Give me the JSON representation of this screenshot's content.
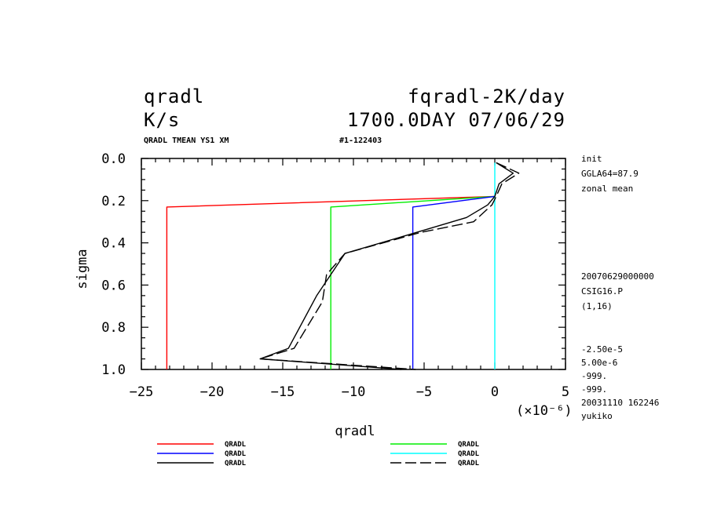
{
  "header": {
    "var_name": "qradl",
    "units": "K/s",
    "right_title": "fqradl-2K/day",
    "right_subtitle": "1700.0DAY 07/06/29",
    "info_left": "QRADL TMEAN YS1 XM",
    "info_right": "#1-122403"
  },
  "side_labels": {
    "top": [
      "init",
      "GGLA64=87.9",
      "zonal mean"
    ],
    "middle": [
      "20070629000000",
      "CSIG16.P",
      "(1,16)"
    ],
    "bottom": [
      "-2.50e-5",
      "5.00e-6",
      "-999.",
      "-999.",
      "20031110 162246",
      "yukiko"
    ]
  },
  "chart_data": {
    "type": "line",
    "xlabel": "qradl",
    "ylabel": "sigma",
    "x_scale_label": "(×10⁻⁶)",
    "xlim": [
      -25,
      5
    ],
    "ylim": [
      0.0,
      1.0
    ],
    "y_inverted": true,
    "x_ticks": [
      -25,
      -20,
      -15,
      -10,
      -5,
      0,
      5
    ],
    "x_tick_labels": [
      "−25",
      "−20",
      "−15",
      "−10",
      "−5",
      "0",
      "5"
    ],
    "y_ticks": [
      0.0,
      0.2,
      0.4,
      0.6,
      0.8,
      1.0
    ],
    "y_tick_labels": [
      "0.0",
      "0.2",
      "0.4",
      "0.6",
      "0.8",
      "1.0"
    ],
    "series": [
      {
        "name": "QRADL",
        "color": "#ff0000",
        "dash": "solid",
        "points": [
          [
            0,
            0.18
          ],
          [
            -23.2,
            0.23
          ],
          [
            -23.2,
            1.0
          ]
        ]
      },
      {
        "name": "QRADL",
        "color": "#00ee00",
        "dash": "solid",
        "points": [
          [
            0,
            0.18
          ],
          [
            -11.6,
            0.23
          ],
          [
            -11.6,
            1.0
          ]
        ]
      },
      {
        "name": "QRADL",
        "color": "#0000ff",
        "dash": "solid",
        "points": [
          [
            0,
            0.18
          ],
          [
            -5.8,
            0.23
          ],
          [
            -5.8,
            1.0
          ]
        ]
      },
      {
        "name": "QRADL",
        "color": "#00ffff",
        "dash": "solid",
        "points": [
          [
            0,
            0.02
          ],
          [
            0,
            1.0
          ]
        ]
      },
      {
        "name": "QRADL",
        "color": "#000000",
        "dash": "solid",
        "points": [
          [
            0.1,
            0.02
          ],
          [
            1.3,
            0.07
          ],
          [
            0.3,
            0.12
          ],
          [
            0,
            0.18
          ],
          [
            -0.5,
            0.22
          ],
          [
            -2,
            0.28
          ],
          [
            -5.5,
            0.35
          ],
          [
            -10.6,
            0.45
          ],
          [
            -11.6,
            0.55
          ],
          [
            -12.6,
            0.65
          ],
          [
            -14.6,
            0.9
          ],
          [
            -16.6,
            0.95
          ],
          [
            -6.6,
            1.0
          ]
        ]
      },
      {
        "name": "QRADL",
        "color": "#000000",
        "dash": "longdash",
        "points": [
          [
            0.1,
            0.02
          ],
          [
            1.7,
            0.07
          ],
          [
            0.5,
            0.12
          ],
          [
            0.1,
            0.18
          ],
          [
            -0.2,
            0.22
          ],
          [
            -1.5,
            0.3
          ],
          [
            -5.2,
            0.35
          ],
          [
            -10.6,
            0.45
          ],
          [
            -11.9,
            0.55
          ],
          [
            -12.2,
            0.68
          ],
          [
            -14.2,
            0.9
          ],
          [
            -16.6,
            0.95
          ],
          [
            -5.6,
            1.0
          ]
        ]
      }
    ],
    "legend_placement": "bottom"
  }
}
